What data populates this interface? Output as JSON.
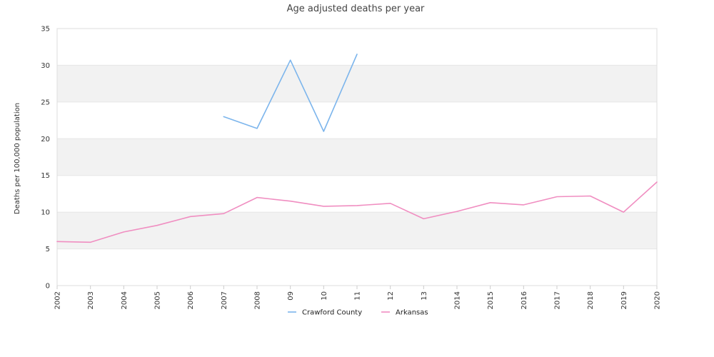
{
  "chart_data": {
    "type": "line",
    "title": "Age adjusted deaths per year",
    "ylabel": "Deaths per 100,000 population",
    "xlabel": "",
    "ylim": [
      0,
      35
    ],
    "yticks": [
      0,
      5,
      10,
      15,
      20,
      25,
      30,
      35
    ],
    "categories": [
      "2002",
      "2003",
      "2004",
      "2005",
      "2006",
      "2007",
      "2008",
      "09",
      "10",
      "11",
      "12",
      "13",
      "2014",
      "2015",
      "2016",
      "2017",
      "2018",
      "2019",
      "2020"
    ],
    "grid": "horizontal bands",
    "legend_position": "bottom",
    "series": [
      {
        "name": "Crawford County",
        "color": "#7cb5ec",
        "values": [
          null,
          null,
          null,
          null,
          null,
          23.0,
          21.4,
          30.7,
          21.0,
          31.5,
          null,
          null,
          null,
          null,
          null,
          null,
          null,
          null,
          null
        ]
      },
      {
        "name": "Arkansas",
        "color": "#f08ec1",
        "values": [
          6.0,
          5.9,
          7.3,
          8.2,
          9.4,
          9.8,
          12.0,
          11.5,
          10.8,
          10.9,
          11.2,
          9.1,
          10.1,
          11.3,
          11.0,
          12.1,
          12.2,
          10.0,
          14.1
        ]
      }
    ]
  }
}
